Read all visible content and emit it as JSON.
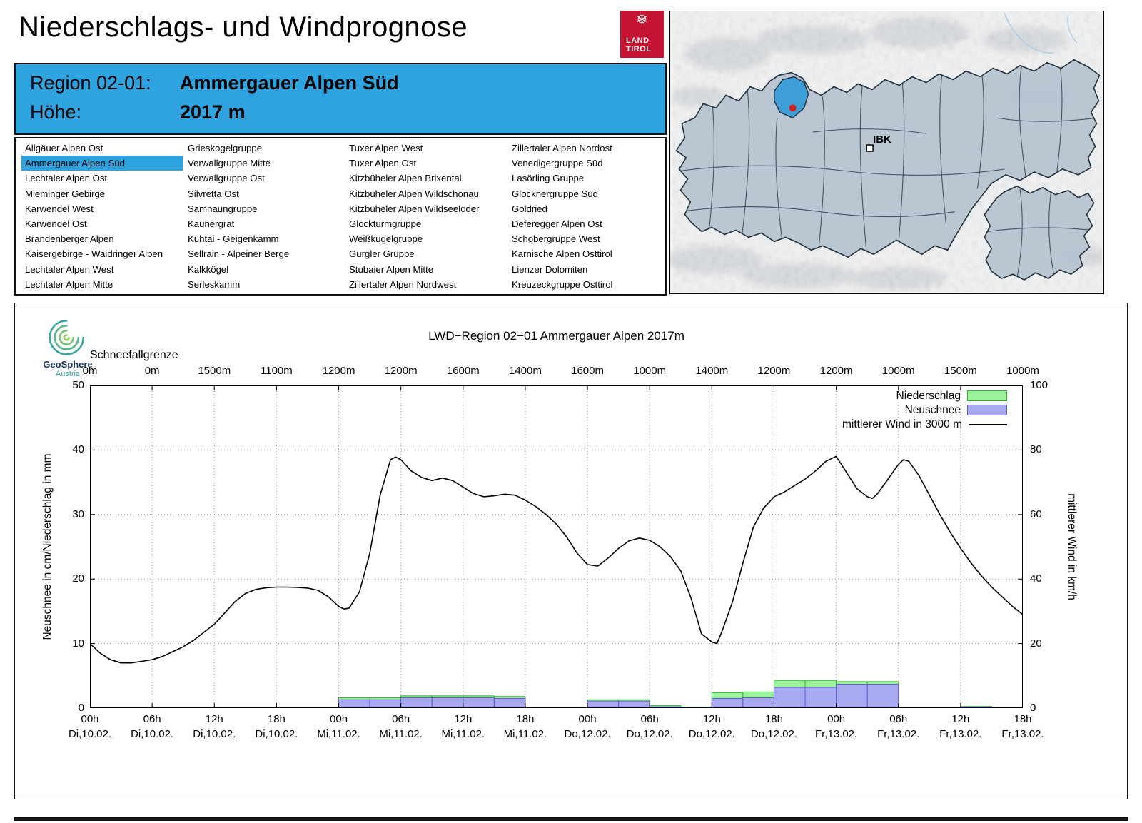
{
  "page": {
    "title": "Niederschlags- und Windprognose"
  },
  "logos": {
    "land_tirol": {
      "line1": "LAND",
      "line2": "TIROL",
      "background": "#c41431",
      "snowflake": "❄"
    },
    "geosphere": {
      "name": "GeoSphere",
      "subtitle": "Austria"
    }
  },
  "map": {
    "marker_label": "IBK",
    "highlight_region": "Ammergauer Alpen Süd",
    "highlight_color": "#3e9ed7",
    "marker_dot_color": "#cc2222"
  },
  "region_header": {
    "region_label": "Region 02-01:",
    "region_value": "Ammergauer Alpen Süd",
    "altitude_label": "Höhe:",
    "altitude_value": "2017 m",
    "background": "#2fa3df"
  },
  "region_list": {
    "selected": "Ammergauer Alpen Süd",
    "columns": [
      [
        "Allgäuer Alpen Ost",
        "Ammergauer Alpen Süd",
        "Lechtaler Alpen Ost",
        "Mieminger Gebirge",
        "Karwendel West",
        "Karwendel Ost",
        "Brandenberger Alpen",
        "Kaisergebirge - Waidringer Alpen",
        "Lechtaler Alpen West",
        "Lechtaler Alpen Mitte"
      ],
      [
        "Grieskogelgruppe",
        "Verwallgruppe Mitte",
        "Verwallgruppe Ost",
        "Silvretta Ost",
        "Samnaungruppe",
        "Kaunergrat",
        "Kühtai - Geigenkamm",
        "Sellrain - Alpeiner Berge",
        "Kalkkögel",
        "Serleskamm"
      ],
      [
        "Tuxer Alpen West",
        "Tuxer Alpen Ost",
        "Kitzbüheler Alpen Brixental",
        "Kitzbüheler Alpen Wildschönau",
        "Kitzbüheler Alpen Wildseeloder",
        "Glockturmgruppe",
        "Weißkugelgruppe",
        "Gurgler Gruppe",
        "Stubaier Alpen Mitte",
        "Zillertaler Alpen Nordwest"
      ],
      [
        "Zillertaler Alpen Nordost",
        "Venedigergruppe Süd",
        "Lasörling Gruppe",
        "Glocknergruppe Süd",
        "Goldried",
        "Deferegger Alpen Ost",
        "Schobergruppe West",
        "Karnische Alpen Osttirol",
        "Lienzer Dolomiten",
        "Kreuzeckgruppe Osttirol"
      ]
    ]
  },
  "chart_data": {
    "type": "line+bar",
    "title": "LWD−Region 02−01 Ammergauer Alpen 2017m",
    "snowline_label": "Schneefallgrenze",
    "snowline_values_m": [
      "0m",
      "0m",
      "1500m",
      "1100m",
      "1200m",
      "1200m",
      "1600m",
      "1400m",
      "1600m",
      "1000m",
      "1400m",
      "1200m",
      "1200m",
      "1000m",
      "1500m",
      "1000m"
    ],
    "ylabel_left": "Neuschnee in cm/Niederschlag in mm",
    "ylabel_right": "mittlerer Wind in km/h",
    "ylim_left": [
      0,
      50
    ],
    "ylim_right": [
      0,
      100
    ],
    "yticks_left": [
      0,
      10,
      20,
      30,
      40,
      50
    ],
    "yticks_right": [
      0,
      20,
      40,
      60,
      80,
      100
    ],
    "x_hours_range": [
      0,
      90
    ],
    "grid": "dotted",
    "legend_position": "top-right",
    "legend": [
      {
        "label": "Niederschlag",
        "key": "niederschlag"
      },
      {
        "label": "Neuschnee",
        "key": "neuschnee"
      },
      {
        "label": "mittlerer Wind in 3000 m",
        "key": "wind"
      }
    ],
    "colors": {
      "niederschlag_fill": "#9cf39c",
      "niederschlag_stroke": "#2db52d",
      "neuschnee_fill": "#a9a9f2",
      "neuschnee_stroke": "#5b5bd6",
      "wind": "#000000"
    },
    "xticks": [
      {
        "hour": 0,
        "time": "00h",
        "date": "Di,10.02."
      },
      {
        "hour": 6,
        "time": "06h",
        "date": "Di,10.02."
      },
      {
        "hour": 12,
        "time": "12h",
        "date": "Di,10.02."
      },
      {
        "hour": 18,
        "time": "18h",
        "date": "Di,10.02."
      },
      {
        "hour": 24,
        "time": "00h",
        "date": "Mi,11.02."
      },
      {
        "hour": 30,
        "time": "06h",
        "date": "Mi,11.02."
      },
      {
        "hour": 36,
        "time": "12h",
        "date": "Mi,11.02."
      },
      {
        "hour": 42,
        "time": "18h",
        "date": "Mi,11.02."
      },
      {
        "hour": 48,
        "time": "00h",
        "date": "Do,12.02."
      },
      {
        "hour": 54,
        "time": "06h",
        "date": "Do,12.02."
      },
      {
        "hour": 60,
        "time": "12h",
        "date": "Do,12.02."
      },
      {
        "hour": 66,
        "time": "18h",
        "date": "Do,12.02."
      },
      {
        "hour": 72,
        "time": "00h",
        "date": "Fr,13.02."
      },
      {
        "hour": 78,
        "time": "06h",
        "date": "Fr,13.02."
      },
      {
        "hour": 84,
        "time": "12h",
        "date": "Fr,13.02."
      },
      {
        "hour": 90,
        "time": "18h",
        "date": "Fr,13.02."
      }
    ],
    "wind_series": {
      "label": "mittlerer Wind in 3000 m",
      "unit": "km/h",
      "axis": "right",
      "points_hour_kmh": [
        [
          0,
          20
        ],
        [
          1,
          17
        ],
        [
          2,
          15
        ],
        [
          3,
          14
        ],
        [
          4,
          14
        ],
        [
          5,
          14.5
        ],
        [
          6,
          15
        ],
        [
          7,
          16
        ],
        [
          8,
          17.5
        ],
        [
          9,
          19
        ],
        [
          10,
          21
        ],
        [
          11,
          23.5
        ],
        [
          12,
          26
        ],
        [
          13,
          29.5
        ],
        [
          14,
          33
        ],
        [
          15,
          35.5
        ],
        [
          16,
          36.8
        ],
        [
          17,
          37.3
        ],
        [
          18,
          37.5
        ],
        [
          19,
          37.5
        ],
        [
          20,
          37.4
        ],
        [
          21,
          37.2
        ],
        [
          22,
          36.5
        ],
        [
          23,
          34.5
        ],
        [
          24,
          31.5
        ],
        [
          24.5,
          30.7
        ],
        [
          25,
          31
        ],
        [
          26,
          36
        ],
        [
          27,
          48
        ],
        [
          28,
          66
        ],
        [
          29,
          77
        ],
        [
          29.5,
          77.8
        ],
        [
          30,
          77
        ],
        [
          31,
          73.5
        ],
        [
          32,
          71.5
        ],
        [
          33,
          70.5
        ],
        [
          34,
          71.3
        ],
        [
          35,
          70.5
        ],
        [
          36,
          68.5
        ],
        [
          37,
          66.5
        ],
        [
          38,
          65.5
        ],
        [
          39,
          65.8
        ],
        [
          40,
          66.3
        ],
        [
          41,
          66
        ],
        [
          42,
          64.5
        ],
        [
          43,
          62.5
        ],
        [
          44,
          60
        ],
        [
          45,
          57
        ],
        [
          46,
          53
        ],
        [
          47,
          48
        ],
        [
          48,
          44.5
        ],
        [
          49,
          44
        ],
        [
          50,
          46.5
        ],
        [
          51,
          49.5
        ],
        [
          52,
          51.8
        ],
        [
          53,
          52.7
        ],
        [
          54,
          52
        ],
        [
          55,
          50
        ],
        [
          56,
          47
        ],
        [
          57,
          42.5
        ],
        [
          58,
          34
        ],
        [
          59,
          23
        ],
        [
          60,
          20.5
        ],
        [
          60.5,
          20
        ],
        [
          61,
          24
        ],
        [
          62,
          33
        ],
        [
          63,
          45
        ],
        [
          64,
          56
        ],
        [
          65,
          62
        ],
        [
          66,
          65.5
        ],
        [
          67,
          67
        ],
        [
          68,
          69
        ],
        [
          69,
          71
        ],
        [
          70,
          73.5
        ],
        [
          71,
          76.5
        ],
        [
          72,
          78
        ],
        [
          73,
          73
        ],
        [
          74,
          68
        ],
        [
          75,
          65.5
        ],
        [
          75.5,
          65
        ],
        [
          76,
          66.5
        ],
        [
          77,
          71
        ],
        [
          78,
          75.5
        ],
        [
          78.5,
          77
        ],
        [
          79,
          76.5
        ],
        [
          80,
          72
        ],
        [
          81,
          66
        ],
        [
          82,
          60
        ],
        [
          83,
          54.5
        ],
        [
          84,
          49.5
        ],
        [
          85,
          45
        ],
        [
          86,
          41
        ],
        [
          87,
          37.5
        ],
        [
          88,
          34.5
        ],
        [
          89,
          31.5
        ],
        [
          90,
          29
        ]
      ]
    },
    "precip_bars": {
      "interval_hours": 3,
      "units": {
        "niederschlag": "mm",
        "neuschnee": "cm"
      },
      "bins": [
        {
          "start_hour": 24,
          "niederschlag_mm": 1.6,
          "neuschnee_cm": 1.3
        },
        {
          "start_hour": 27,
          "niederschlag_mm": 1.6,
          "neuschnee_cm": 1.3
        },
        {
          "start_hour": 30,
          "niederschlag_mm": 1.9,
          "neuschnee_cm": 1.6
        },
        {
          "start_hour": 33,
          "niederschlag_mm": 1.9,
          "neuschnee_cm": 1.6
        },
        {
          "start_hour": 36,
          "niederschlag_mm": 1.9,
          "neuschnee_cm": 1.6
        },
        {
          "start_hour": 39,
          "niederschlag_mm": 1.8,
          "neuschnee_cm": 1.5
        },
        {
          "start_hour": 48,
          "niederschlag_mm": 1.3,
          "neuschnee_cm": 1.1
        },
        {
          "start_hour": 51,
          "niederschlag_mm": 1.3,
          "neuschnee_cm": 1.1
        },
        {
          "start_hour": 54,
          "niederschlag_mm": 0.4,
          "neuschnee_cm": 0.2
        },
        {
          "start_hour": 57,
          "niederschlag_mm": 0.15,
          "neuschnee_cm": 0.1
        },
        {
          "start_hour": 60,
          "niederschlag_mm": 2.4,
          "neuschnee_cm": 1.5
        },
        {
          "start_hour": 63,
          "niederschlag_mm": 2.5,
          "neuschnee_cm": 1.6
        },
        {
          "start_hour": 66,
          "niederschlag_mm": 4.3,
          "neuschnee_cm": 3.2
        },
        {
          "start_hour": 69,
          "niederschlag_mm": 4.3,
          "neuschnee_cm": 3.2
        },
        {
          "start_hour": 72,
          "niederschlag_mm": 4.1,
          "neuschnee_cm": 3.7
        },
        {
          "start_hour": 75,
          "niederschlag_mm": 4.1,
          "neuschnee_cm": 3.7
        },
        {
          "start_hour": 84,
          "niederschlag_mm": 0.25,
          "neuschnee_cm": 0.15
        }
      ]
    }
  }
}
